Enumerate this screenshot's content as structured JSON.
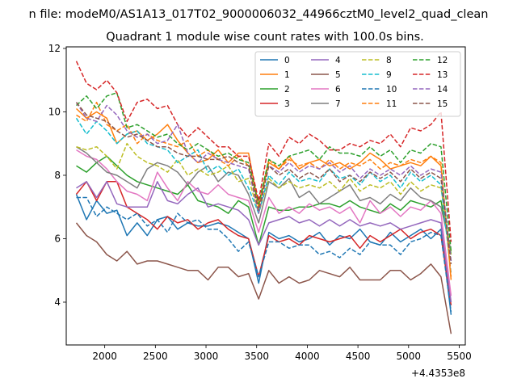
{
  "chart_data": {
    "type": "line",
    "suptitle": "n file: modeM0/AS1A13_017T02_9000006032_44966cztM0_level2_quad_clean",
    "title": "Quadrant 1 module wise count rates with 100.0s bins.",
    "xlabel": "",
    "ylabel": "",
    "x_offset_label": "+4.4353e8",
    "xlim": [
      1620,
      5560
    ],
    "ylim": [
      2.65,
      12.05
    ],
    "xticks": [
      2000,
      2500,
      3000,
      3500,
      4000,
      4500,
      5000,
      5500
    ],
    "yticks": [
      4,
      6,
      8,
      10,
      12
    ],
    "grid": false,
    "legend_position": "top-right",
    "legend_columns": 4,
    "x": [
      1720,
      1820,
      1920,
      2020,
      2120,
      2220,
      2320,
      2420,
      2520,
      2620,
      2720,
      2820,
      2920,
      3020,
      3120,
      3220,
      3320,
      3420,
      3520,
      3620,
      3720,
      3820,
      3920,
      4020,
      4120,
      4220,
      4320,
      4420,
      4520,
      4620,
      4720,
      4820,
      4920,
      5020,
      5120,
      5220,
      5320,
      5420
    ],
    "series": [
      {
        "name": "0",
        "color": "#1f77b4",
        "dash": "solid",
        "values": [
          7.4,
          6.6,
          7.2,
          6.8,
          6.9,
          6.1,
          6.5,
          6.1,
          6.6,
          6.7,
          6.3,
          6.5,
          6.4,
          6.4,
          6.5,
          6.4,
          6.2,
          6.0,
          4.6,
          6.2,
          6.0,
          6.1,
          5.9,
          6.0,
          6.2,
          5.8,
          6.1,
          6.0,
          6.3,
          5.9,
          5.8,
          6.2,
          5.9,
          6.1,
          6.3,
          6.0,
          6.3,
          3.6
        ]
      },
      {
        "name": "1",
        "color": "#ff7f0e",
        "dash": "solid",
        "values": [
          10.1,
          9.8,
          10.0,
          9.8,
          9.0,
          9.3,
          9.4,
          9.1,
          9.3,
          9.6,
          9.1,
          8.7,
          8.4,
          8.5,
          8.8,
          8.4,
          8.7,
          8.7,
          7.0,
          8.4,
          8.2,
          8.6,
          8.2,
          8.4,
          8.5,
          8.3,
          8.4,
          8.2,
          8.4,
          8.7,
          8.5,
          8.2,
          8.3,
          8.4,
          8.3,
          8.6,
          8.3,
          4.7
        ]
      },
      {
        "name": "2",
        "color": "#2ca02c",
        "dash": "solid",
        "values": [
          8.3,
          8.1,
          8.4,
          8.6,
          8.3,
          8.0,
          7.8,
          7.7,
          7.6,
          7.5,
          7.4,
          7.7,
          7.2,
          7.1,
          7.0,
          6.8,
          7.2,
          7.0,
          5.8,
          7.0,
          6.9,
          6.9,
          7.0,
          7.0,
          7.1,
          7.1,
          7.0,
          7.2,
          7.0,
          6.9,
          6.8,
          7.1,
          6.9,
          7.2,
          7.1,
          7.0,
          7.2,
          5.5
        ]
      },
      {
        "name": "3",
        "color": "#d62728",
        "dash": "solid",
        "values": [
          7.4,
          7.8,
          7.2,
          7.8,
          7.8,
          7.0,
          6.8,
          6.6,
          6.3,
          6.7,
          6.5,
          6.6,
          6.3,
          6.5,
          6.6,
          6.3,
          6.1,
          6.0,
          4.8,
          6.1,
          5.9,
          6.0,
          5.8,
          6.1,
          6.0,
          5.9,
          6.0,
          6.1,
          5.7,
          6.1,
          5.9,
          6.1,
          6.3,
          6.0,
          6.2,
          6.3,
          6.1,
          3.9
        ]
      },
      {
        "name": "4",
        "color": "#9467bd",
        "dash": "solid",
        "values": [
          7.6,
          7.8,
          7.3,
          7.8,
          7.1,
          7.0,
          7.0,
          7.0,
          7.8,
          7.2,
          7.1,
          7.4,
          7.6,
          7.0,
          7.1,
          7.0,
          6.9,
          6.6,
          5.8,
          6.5,
          6.6,
          6.7,
          6.5,
          6.6,
          6.4,
          6.6,
          6.4,
          6.6,
          6.4,
          6.5,
          6.4,
          6.5,
          6.3,
          6.4,
          6.5,
          6.6,
          6.5,
          4.0
        ]
      },
      {
        "name": "5",
        "color": "#8c564b",
        "dash": "solid",
        "values": [
          6.5,
          6.1,
          5.9,
          5.5,
          5.3,
          5.6,
          5.2,
          5.3,
          5.3,
          5.2,
          5.1,
          5.0,
          5.0,
          4.7,
          5.1,
          5.1,
          4.8,
          4.9,
          4.1,
          5.0,
          4.6,
          4.8,
          4.6,
          4.7,
          5.0,
          4.9,
          4.8,
          5.1,
          4.7,
          4.7,
          4.7,
          5.0,
          5.0,
          4.7,
          4.9,
          5.2,
          4.8,
          3.0
        ]
      },
      {
        "name": "6",
        "color": "#e377c2",
        "dash": "solid",
        "values": [
          8.8,
          8.6,
          8.5,
          8.2,
          7.8,
          7.5,
          7.4,
          7.2,
          8.1,
          7.6,
          7.2,
          7.8,
          7.5,
          7.4,
          7.7,
          7.4,
          7.3,
          7.2,
          6.2,
          7.3,
          6.8,
          7.0,
          6.8,
          7.1,
          6.9,
          7.0,
          6.8,
          7.0,
          6.5,
          7.2,
          6.8,
          7.0,
          6.7,
          7.0,
          6.9,
          7.2,
          6.8,
          4.2
        ]
      },
      {
        "name": "7",
        "color": "#7f7f7f",
        "dash": "solid",
        "values": [
          8.9,
          8.7,
          8.4,
          8.1,
          8.0,
          7.8,
          7.6,
          8.2,
          8.4,
          8.3,
          8.1,
          7.7,
          8.1,
          8.3,
          7.8,
          8.1,
          8.0,
          7.4,
          6.5,
          7.8,
          7.6,
          7.9,
          7.3,
          7.5,
          7.1,
          7.3,
          7.5,
          7.7,
          7.2,
          7.3,
          7.1,
          7.4,
          7.2,
          7.6,
          7.3,
          7.2,
          7.0,
          5.6
        ]
      },
      {
        "name": "8",
        "color": "#bcbd22",
        "dash": "dashed",
        "values": [
          8.9,
          8.8,
          8.9,
          8.6,
          8.2,
          9.0,
          8.6,
          8.4,
          8.3,
          8.1,
          8.5,
          8.0,
          8.2,
          8.0,
          8.1,
          8.3,
          7.8,
          7.9,
          6.8,
          7.9,
          7.6,
          7.8,
          7.6,
          7.7,
          7.6,
          7.8,
          7.5,
          7.9,
          7.5,
          7.7,
          7.6,
          7.8,
          7.4,
          7.8,
          7.5,
          7.7,
          7.6,
          5.5
        ]
      },
      {
        "name": "9",
        "color": "#17becf",
        "dash": "dashed",
        "values": [
          9.8,
          9.3,
          9.7,
          9.4,
          9.0,
          9.3,
          9.4,
          9.0,
          8.9,
          8.8,
          8.4,
          8.6,
          8.8,
          8.1,
          8.3,
          8.0,
          8.2,
          7.6,
          6.8,
          8.0,
          7.7,
          8.1,
          7.8,
          7.9,
          7.8,
          8.2,
          7.9,
          8.0,
          7.7,
          8.1,
          7.8,
          8.0,
          7.6,
          8.1,
          7.8,
          8.0,
          7.7,
          4.9
        ]
      },
      {
        "name": "10",
        "color": "#1f77b4",
        "dash": "dashed",
        "values": [
          7.3,
          7.3,
          6.7,
          7.0,
          6.8,
          6.6,
          6.8,
          6.4,
          6.6,
          6.2,
          6.8,
          6.5,
          6.6,
          6.3,
          6.3,
          6.0,
          5.6,
          5.9,
          4.8,
          5.9,
          5.9,
          5.7,
          5.8,
          5.8,
          5.5,
          5.6,
          5.4,
          5.7,
          5.5,
          5.9,
          5.8,
          5.8,
          5.5,
          5.9,
          6.0,
          6.2,
          6.1,
          3.7
        ]
      },
      {
        "name": "11",
        "color": "#ff7f0e",
        "dash": "dashed",
        "values": [
          9.9,
          9.7,
          10.3,
          9.6,
          9.4,
          9.6,
          9.0,
          9.3,
          9.1,
          9.0,
          8.9,
          9.1,
          8.6,
          8.8,
          8.5,
          8.3,
          8.6,
          8.3,
          7.0,
          8.5,
          8.2,
          8.5,
          8.3,
          8.4,
          8.2,
          8.5,
          8.2,
          8.4,
          8.3,
          8.5,
          8.2,
          8.4,
          8.3,
          8.5,
          8.4,
          8.6,
          8.4,
          4.8
        ]
      },
      {
        "name": "12",
        "color": "#2ca02c",
        "dash": "dashed",
        "values": [
          10.2,
          10.5,
          10.1,
          10.5,
          10.6,
          9.5,
          9.6,
          9.4,
          9.2,
          9.3,
          9.0,
          8.8,
          9.0,
          8.8,
          8.6,
          8.7,
          8.5,
          8.4,
          7.1,
          8.5,
          8.3,
          8.6,
          8.7,
          8.8,
          8.5,
          8.9,
          8.7,
          8.7,
          8.6,
          8.9,
          8.6,
          8.8,
          8.4,
          8.8,
          8.7,
          9.0,
          8.9,
          5.6
        ]
      },
      {
        "name": "13",
        "color": "#d62728",
        "dash": "dashed",
        "values": [
          11.6,
          10.9,
          10.7,
          11.0,
          10.6,
          9.7,
          10.3,
          10.4,
          10.1,
          10.2,
          9.6,
          9.2,
          9.5,
          9.2,
          8.9,
          8.9,
          8.6,
          8.6,
          7.2,
          9.0,
          8.6,
          9.2,
          9.0,
          9.3,
          9.1,
          8.8,
          8.8,
          9.0,
          8.9,
          9.1,
          9.0,
          9.3,
          8.9,
          9.5,
          9.4,
          9.6,
          10.0,
          5.9
        ]
      },
      {
        "name": "14",
        "color": "#9467bd",
        "dash": "dashed",
        "values": [
          10.3,
          9.8,
          9.7,
          10.2,
          9.9,
          9.4,
          9.2,
          9.3,
          9.0,
          9.1,
          9.6,
          8.7,
          8.4,
          8.7,
          8.5,
          8.4,
          8.3,
          8.2,
          6.8,
          8.3,
          8.1,
          8.4,
          8.1,
          8.3,
          8.2,
          8.4,
          8.1,
          8.3,
          7.9,
          8.2,
          8.0,
          8.2,
          8.0,
          8.3,
          8.0,
          8.2,
          8.1,
          5.3
        ]
      },
      {
        "name": "15",
        "color": "#8c564b",
        "dash": "dashed",
        "values": [
          10.3,
          9.9,
          9.8,
          9.7,
          9.4,
          9.2,
          9.3,
          9.1,
          8.9,
          8.9,
          8.7,
          8.6,
          8.6,
          8.5,
          8.5,
          8.6,
          8.4,
          8.3,
          6.9,
          8.3,
          8.0,
          8.2,
          7.9,
          8.1,
          7.9,
          8.2,
          7.8,
          8.0,
          7.8,
          8.1,
          7.9,
          8.1,
          7.8,
          8.2,
          7.9,
          8.1,
          7.9,
          5.2
        ]
      }
    ]
  }
}
